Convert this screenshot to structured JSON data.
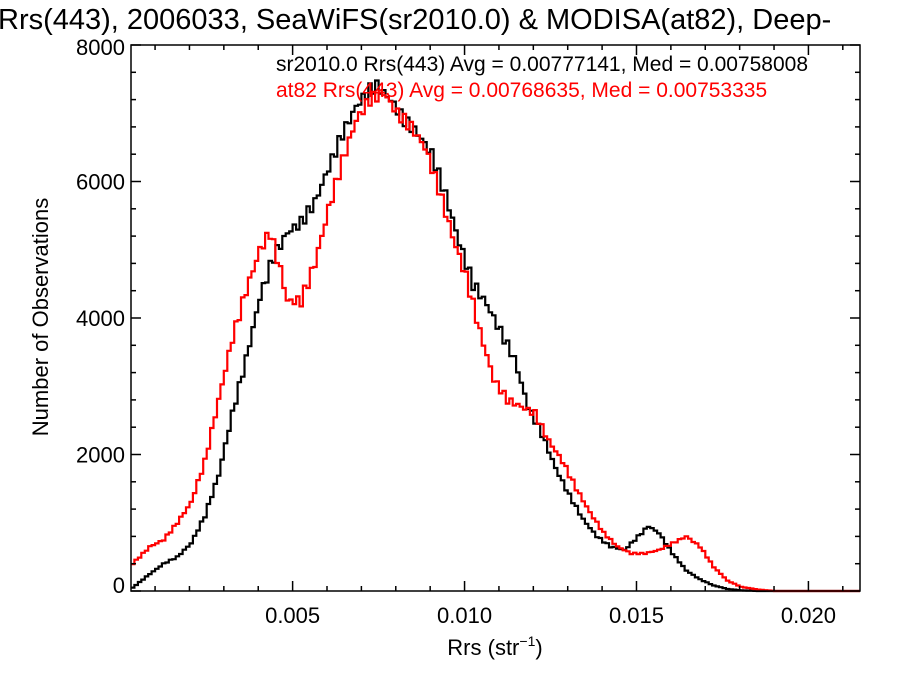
{
  "page": {
    "title": "Rrs(443), 2006033, SeaWiFS(sr2010.0) & MODISA(at82), Deep-"
  },
  "chart_data": {
    "type": "line",
    "title": "Rrs(443), 2006033, SeaWiFS(sr2010.0) & MODISA(at82), Deep-",
    "xlabel": "Rrs (str",
    "xlabel_sup": "−1",
    "xlabel_close": ")",
    "ylabel": "Number of Observations",
    "xlim": [
      0.0003,
      0.0215
    ],
    "ylim": [
      0,
      8000
    ],
    "x_ticks": [
      0.005,
      0.01,
      0.015,
      0.02
    ],
    "x_tick_labels": [
      "0.005",
      "0.010",
      "0.015",
      "0.020"
    ],
    "y_ticks": [
      0,
      2000,
      4000,
      6000,
      8000
    ],
    "y_tick_labels": [
      "0",
      "2000",
      "4000",
      "6000",
      "8000"
    ],
    "grid": false,
    "legend": "top-right",
    "series": [
      {
        "name": "sr2010.0",
        "color": "#000000",
        "label": "sr2010.0 Rrs(443) Avg = 0.00777141, Med = 0.00758008",
        "points": [
          [
            0.0003,
            50
          ],
          [
            0.0008,
            250
          ],
          [
            0.0012,
            400
          ],
          [
            0.0016,
            500
          ],
          [
            0.002,
            700
          ],
          [
            0.0024,
            1100
          ],
          [
            0.0028,
            1700
          ],
          [
            0.0032,
            2600
          ],
          [
            0.0036,
            3400
          ],
          [
            0.004,
            4300
          ],
          [
            0.0044,
            4900
          ],
          [
            0.0048,
            5250
          ],
          [
            0.0052,
            5400
          ],
          [
            0.0056,
            5700
          ],
          [
            0.006,
            6200
          ],
          [
            0.0064,
            6700
          ],
          [
            0.0068,
            7100
          ],
          [
            0.0072,
            7350
          ],
          [
            0.0074,
            7400
          ],
          [
            0.0078,
            7200
          ],
          [
            0.0082,
            6900
          ],
          [
            0.0086,
            6700
          ],
          [
            0.009,
            6400
          ],
          [
            0.0094,
            5800
          ],
          [
            0.0098,
            5100
          ],
          [
            0.0102,
            4500
          ],
          [
            0.0106,
            4200
          ],
          [
            0.011,
            3800
          ],
          [
            0.0114,
            3400
          ],
          [
            0.0118,
            2700
          ],
          [
            0.0122,
            2300
          ],
          [
            0.0126,
            1800
          ],
          [
            0.013,
            1400
          ],
          [
            0.0134,
            1050
          ],
          [
            0.0138,
            800
          ],
          [
            0.0142,
            650
          ],
          [
            0.0146,
            600
          ],
          [
            0.015,
            800
          ],
          [
            0.0153,
            950
          ],
          [
            0.0156,
            850
          ],
          [
            0.016,
            550
          ],
          [
            0.0164,
            300
          ],
          [
            0.0168,
            170
          ],
          [
            0.0172,
            80
          ],
          [
            0.0176,
            30
          ],
          [
            0.018,
            10
          ],
          [
            0.0185,
            0
          ],
          [
            0.0215,
            0
          ]
        ]
      },
      {
        "name": "at82",
        "color": "#ff0000",
        "label": "at82 Rrs(443) Avg = 0.00768635, Med = 0.00753335",
        "points": [
          [
            0.0003,
            400
          ],
          [
            0.0008,
            650
          ],
          [
            0.0012,
            750
          ],
          [
            0.0016,
            1000
          ],
          [
            0.002,
            1300
          ],
          [
            0.0024,
            1900
          ],
          [
            0.0028,
            2800
          ],
          [
            0.0032,
            3700
          ],
          [
            0.0036,
            4400
          ],
          [
            0.004,
            5000
          ],
          [
            0.0043,
            5250
          ],
          [
            0.0046,
            4700
          ],
          [
            0.0048,
            4250
          ],
          [
            0.0052,
            4250
          ],
          [
            0.0056,
            4800
          ],
          [
            0.006,
            5600
          ],
          [
            0.0064,
            6300
          ],
          [
            0.0068,
            6900
          ],
          [
            0.0072,
            7200
          ],
          [
            0.0076,
            7300
          ],
          [
            0.008,
            7000
          ],
          [
            0.0084,
            6800
          ],
          [
            0.0088,
            6500
          ],
          [
            0.0092,
            5900
          ],
          [
            0.0096,
            5200
          ],
          [
            0.01,
            4600
          ],
          [
            0.0104,
            3800
          ],
          [
            0.0108,
            3100
          ],
          [
            0.0112,
            2800
          ],
          [
            0.0116,
            2700
          ],
          [
            0.012,
            2600
          ],
          [
            0.0124,
            2200
          ],
          [
            0.0128,
            1900
          ],
          [
            0.0132,
            1500
          ],
          [
            0.0136,
            1150
          ],
          [
            0.014,
            850
          ],
          [
            0.0144,
            650
          ],
          [
            0.0148,
            550
          ],
          [
            0.0152,
            550
          ],
          [
            0.0156,
            600
          ],
          [
            0.016,
            700
          ],
          [
            0.0164,
            800
          ],
          [
            0.0168,
            650
          ],
          [
            0.0172,
            350
          ],
          [
            0.0176,
            150
          ],
          [
            0.018,
            60
          ],
          [
            0.0185,
            20
          ],
          [
            0.019,
            0
          ],
          [
            0.0215,
            0
          ]
        ]
      }
    ]
  }
}
